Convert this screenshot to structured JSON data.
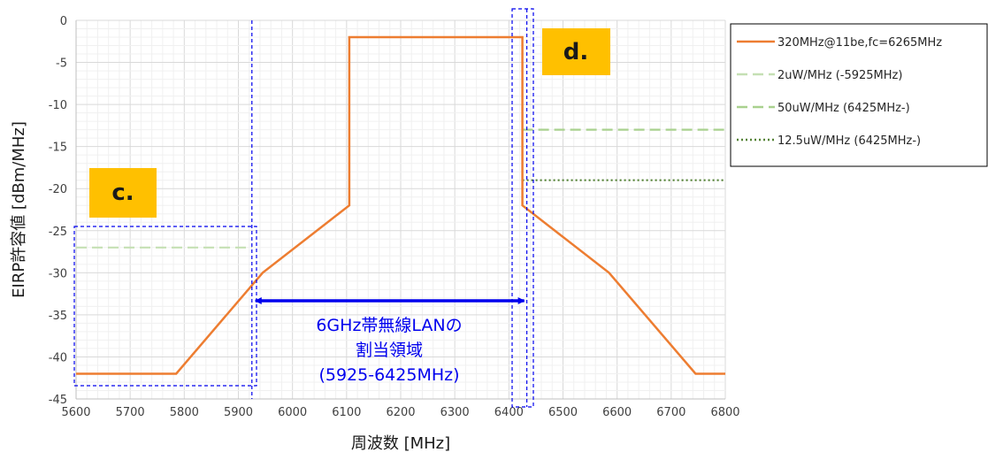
{
  "chart_data": {
    "type": "line",
    "xlabel": "周波数 [MHz]",
    "ylabel": "EIRP許容値 [dBm/MHz]",
    "xlim": [
      5600,
      6800
    ],
    "ylim": [
      -45,
      0
    ],
    "x_ticks": [
      5600,
      5700,
      5800,
      5900,
      6000,
      6100,
      6200,
      6300,
      6400,
      6500,
      6600,
      6700,
      6800
    ],
    "y_ticks": [
      0,
      -5,
      -10,
      -15,
      -20,
      -25,
      -30,
      -35,
      -40,
      -45
    ],
    "grid": true,
    "legend_position": "right",
    "series": [
      {
        "name": "320MHz@11be,fc=6265MHz",
        "style": "solid",
        "color": "#ed7d31",
        "points": [
          [
            5600,
            -42
          ],
          [
            5785,
            -42
          ],
          [
            5945,
            -30
          ],
          [
            6105,
            -22
          ],
          [
            6105,
            -2
          ],
          [
            6425,
            -2
          ],
          [
            6425,
            -22
          ],
          [
            6585,
            -30
          ],
          [
            6745,
            -42
          ],
          [
            6800,
            -42
          ]
        ]
      },
      {
        "name": "2uW/MHz (-5925MHz)",
        "style": "dashed",
        "color": "#c5e0b4",
        "points": [
          [
            5600,
            -27
          ],
          [
            5925,
            -27
          ]
        ]
      },
      {
        "name": "50uW/MHz (6425MHz-)",
        "style": "dashed",
        "color": "#a9d18e",
        "points": [
          [
            6425,
            -13
          ],
          [
            6800,
            -13
          ]
        ]
      },
      {
        "name": "12.5uW/MHz (6425MHz-)",
        "style": "dotted",
        "color": "#548235",
        "points": [
          [
            6425,
            -19
          ],
          [
            6800,
            -19
          ]
        ]
      }
    ],
    "annotations": {
      "band_label_lines": [
        "6GHz帯無線LANの",
        "割当領域",
        "(5925-6425MHz)"
      ],
      "band_range": [
        5925,
        6425
      ],
      "badge_c": "c.",
      "badge_d": "d.",
      "badge_color": "#ffc000",
      "annotation_color": "#0000ee"
    }
  }
}
